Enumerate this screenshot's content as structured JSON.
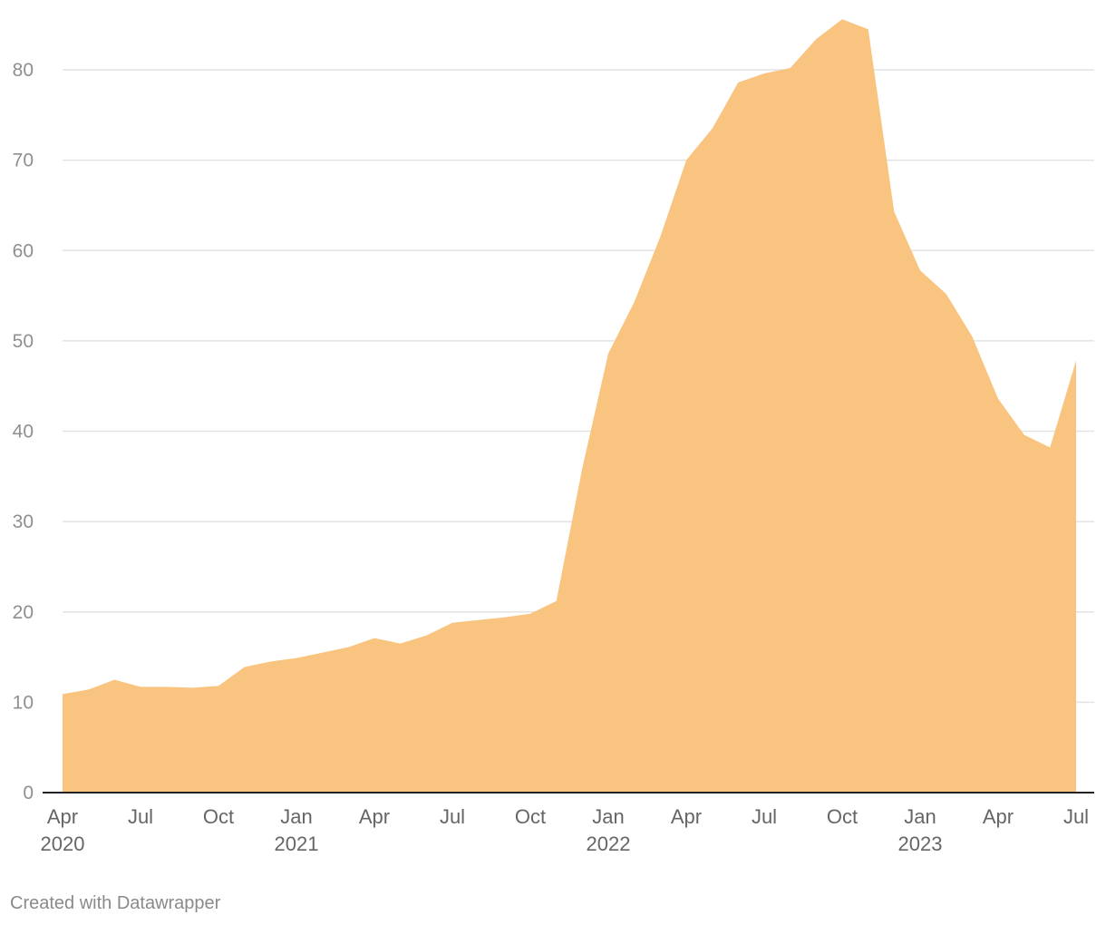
{
  "chart_data": {
    "type": "area",
    "title": "",
    "xlabel": "",
    "ylabel": "",
    "color": "#f9c47f",
    "ylim": [
      0,
      85
    ],
    "yticks": [
      0,
      10,
      20,
      30,
      40,
      50,
      60,
      70,
      80
    ],
    "xticks": [
      {
        "date": "2020-04",
        "label": "Apr",
        "year": "2020"
      },
      {
        "date": "2020-07",
        "label": "Jul",
        "year": ""
      },
      {
        "date": "2020-10",
        "label": "Oct",
        "year": ""
      },
      {
        "date": "2021-01",
        "label": "Jan",
        "year": "2021"
      },
      {
        "date": "2021-04",
        "label": "Apr",
        "year": ""
      },
      {
        "date": "2021-07",
        "label": "Jul",
        "year": ""
      },
      {
        "date": "2021-10",
        "label": "Oct",
        "year": ""
      },
      {
        "date": "2022-01",
        "label": "Jan",
        "year": "2022"
      },
      {
        "date": "2022-04",
        "label": "Apr",
        "year": ""
      },
      {
        "date": "2022-07",
        "label": "Jul",
        "year": ""
      },
      {
        "date": "2022-10",
        "label": "Oct",
        "year": ""
      },
      {
        "date": "2023-01",
        "label": "Jan",
        "year": "2023"
      },
      {
        "date": "2023-04",
        "label": "Apr",
        "year": ""
      },
      {
        "date": "2023-07",
        "label": "Jul",
        "year": ""
      }
    ],
    "x": [
      "2020-04",
      "2020-05",
      "2020-06",
      "2020-07",
      "2020-08",
      "2020-09",
      "2020-10",
      "2020-11",
      "2020-12",
      "2021-01",
      "2021-02",
      "2021-03",
      "2021-04",
      "2021-05",
      "2021-06",
      "2021-07",
      "2021-08",
      "2021-09",
      "2021-10",
      "2021-11",
      "2021-12",
      "2022-01",
      "2022-02",
      "2022-03",
      "2022-04",
      "2022-05",
      "2022-06",
      "2022-07",
      "2022-08",
      "2022-09",
      "2022-10",
      "2022-11",
      "2022-12",
      "2023-01",
      "2023-02",
      "2023-03",
      "2023-04",
      "2023-05",
      "2023-06",
      "2023-07"
    ],
    "values": [
      10.9,
      11.4,
      12.5,
      11.7,
      11.7,
      11.6,
      11.8,
      13.9,
      14.5,
      14.9,
      15.5,
      16.1,
      17.1,
      16.5,
      17.4,
      18.8,
      19.1,
      19.4,
      19.8,
      21.2,
      35.9,
      48.6,
      54.3,
      61.5,
      70.0,
      73.5,
      78.6,
      79.6,
      80.2,
      83.4,
      85.6,
      84.5,
      64.3,
      57.8,
      55.2,
      50.5,
      43.6,
      39.6,
      38.2,
      47.8
    ]
  },
  "footer": {
    "credit": "Created with Datawrapper"
  }
}
